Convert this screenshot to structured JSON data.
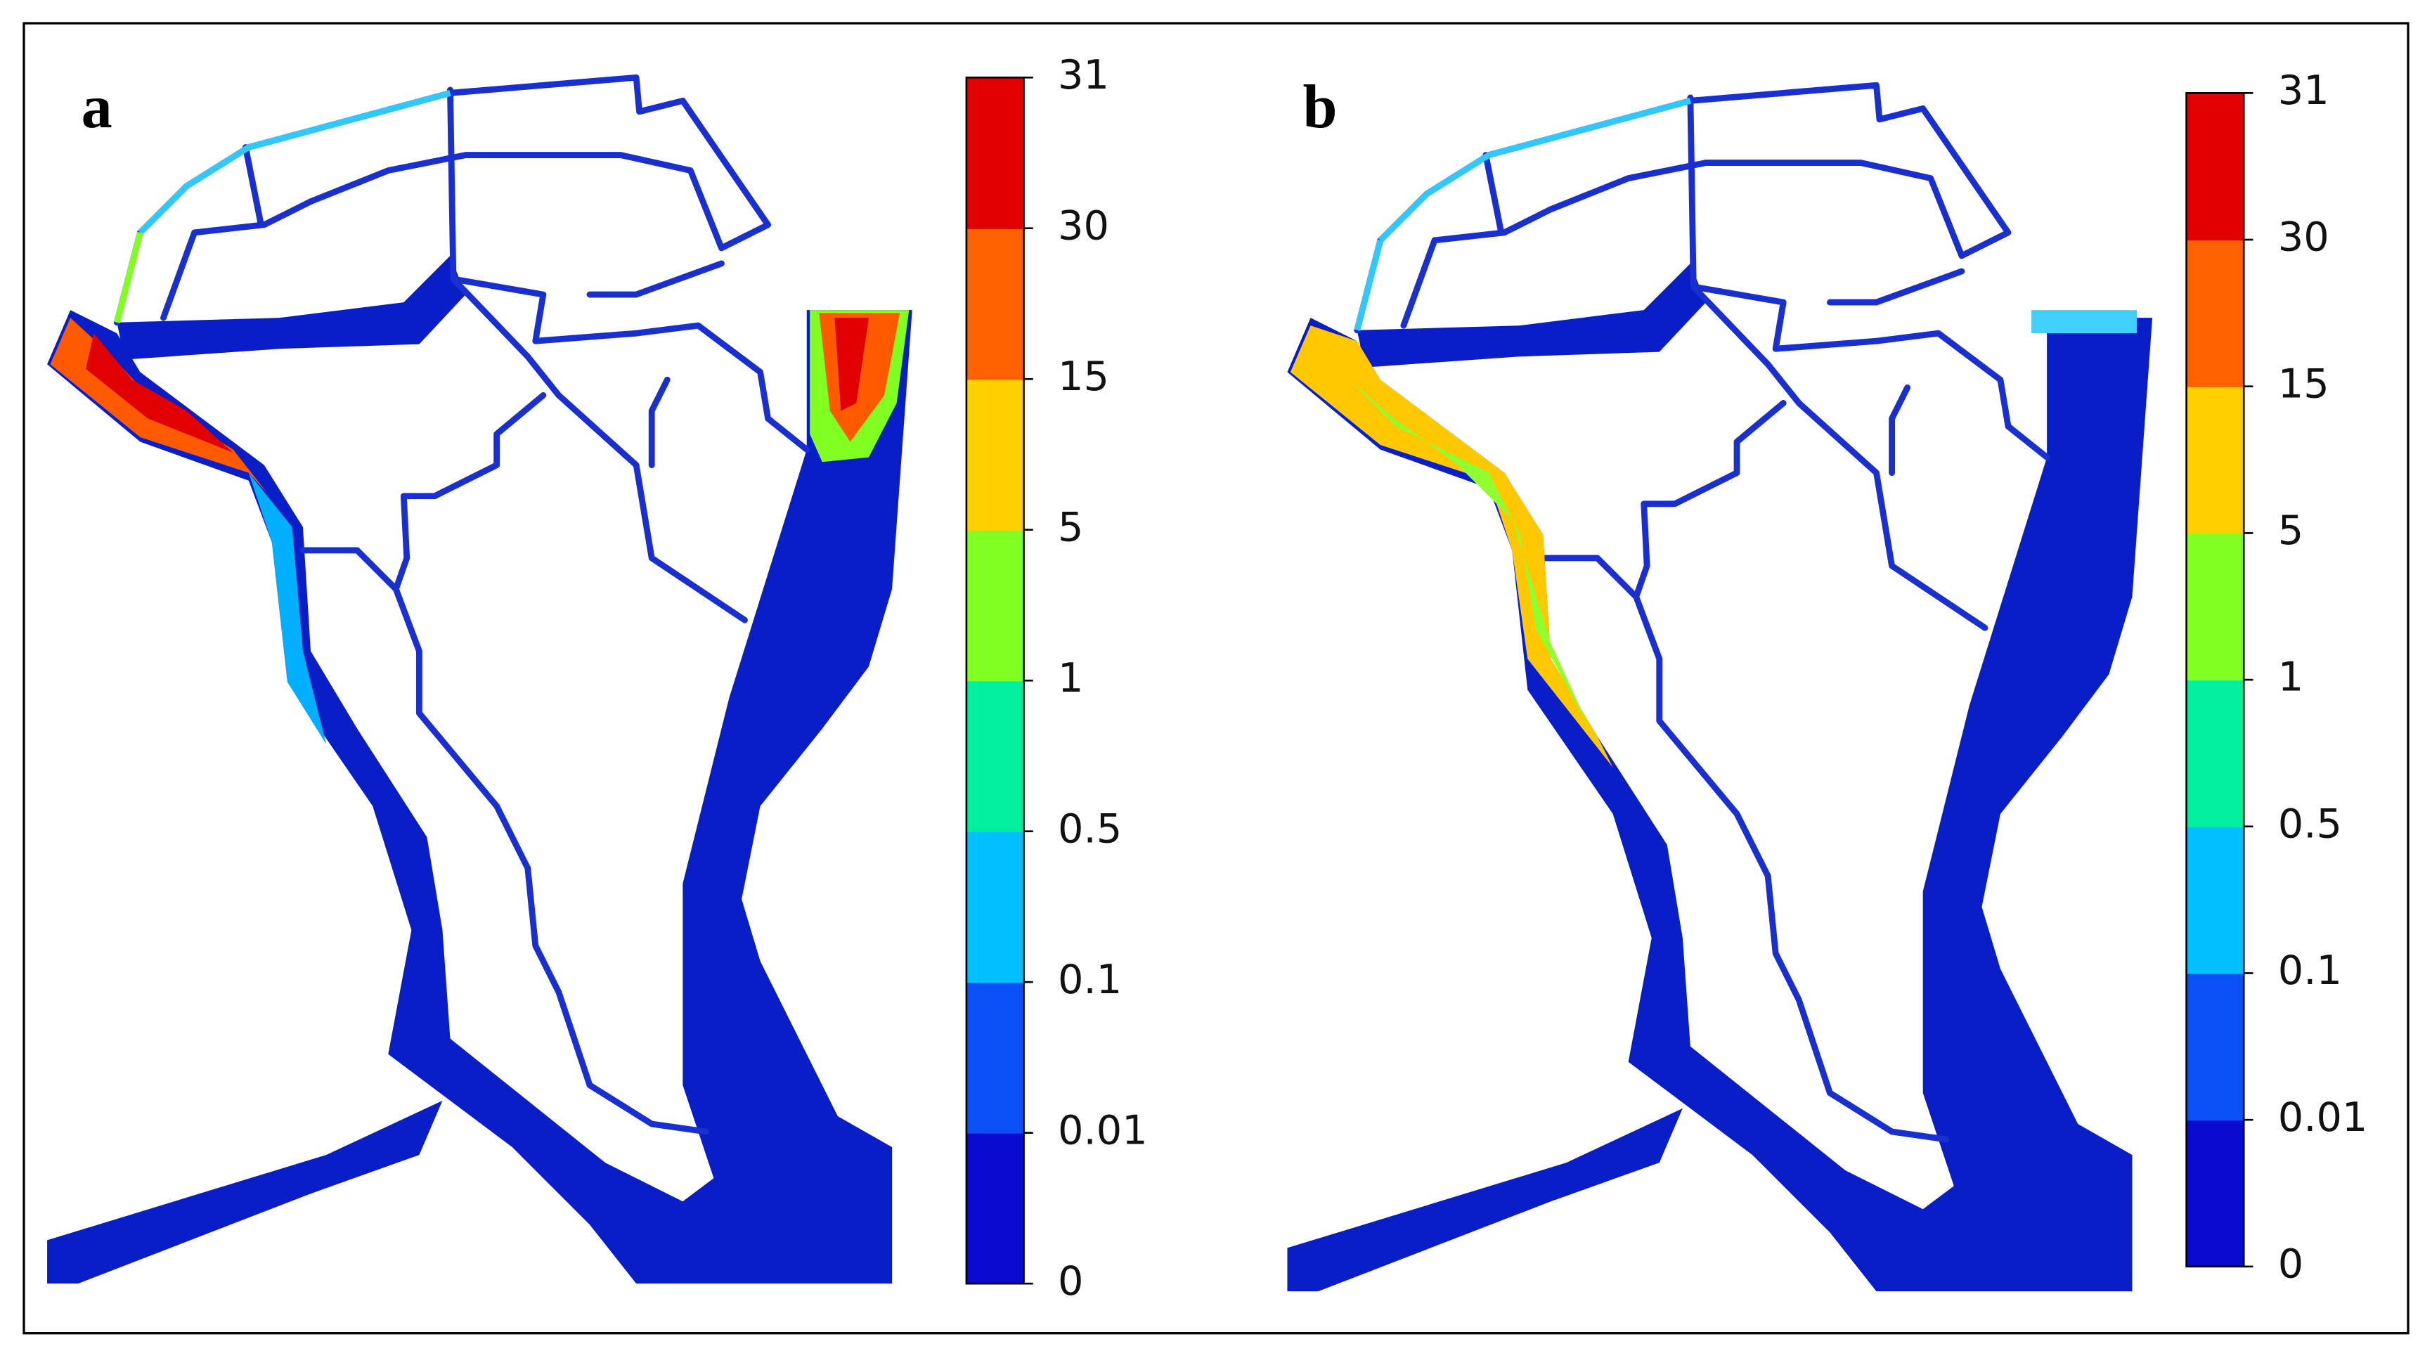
{
  "panels": [
    {
      "label": "a",
      "colorbar": {
        "ticks": [
          0,
          0.01,
          0.1,
          0.5,
          1,
          5,
          15,
          30,
          31
        ],
        "colors": [
          "#0a0ad0",
          "#0a50f5",
          "#00c0ff",
          "#00f0a0",
          "#80ff20",
          "#ffd000",
          "#ff6000",
          "#e00000"
        ]
      }
    },
    {
      "label": "b",
      "colorbar": {
        "ticks": [
          0,
          0.01,
          0.1,
          0.5,
          1,
          5,
          15,
          30,
          31
        ],
        "colors": [
          "#0a0ad0",
          "#0a50f5",
          "#00c0ff",
          "#00f0a0",
          "#80ff20",
          "#ffd000",
          "#ff6000",
          "#e00000"
        ]
      }
    }
  ]
}
